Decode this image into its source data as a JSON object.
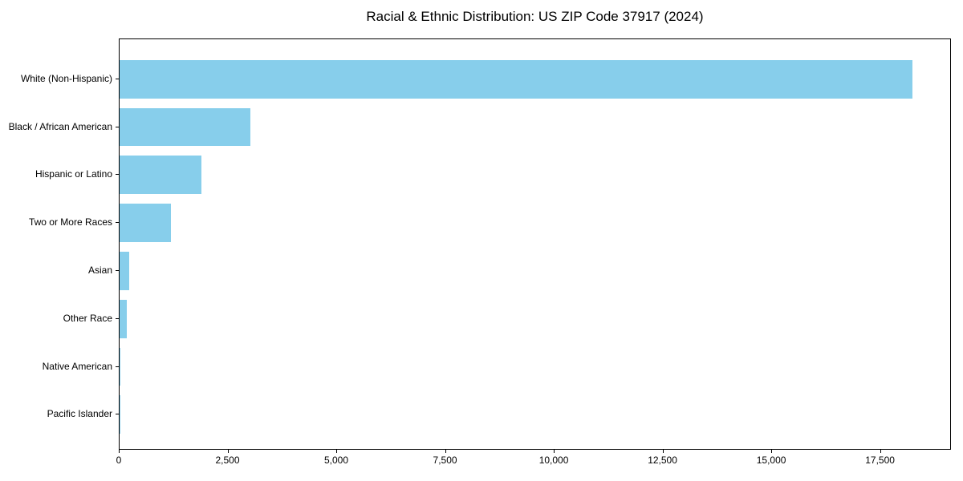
{
  "chart_data": {
    "type": "bar",
    "orientation": "horizontal",
    "title": "Racial & Ethnic Distribution: US ZIP Code 37917 (2024)",
    "categories": [
      "White (Non-Hispanic)",
      "Black / African American",
      "Hispanic or Latino",
      "Two or More Races",
      "Asian",
      "Other Race",
      "Native American",
      "Pacific Islander"
    ],
    "values": [
      18220,
      3000,
      1880,
      1180,
      220,
      160,
      25,
      8
    ],
    "xlabel": "",
    "ylabel": "",
    "xlim": [
      0,
      19131
    ],
    "xticks": {
      "values": [
        0,
        2500,
        5000,
        7500,
        10000,
        12500,
        15000,
        17500
      ],
      "labels": [
        "0",
        "2,500",
        "5,000",
        "7,500",
        "10,000",
        "12,500",
        "15,000",
        "17,500"
      ]
    },
    "grid": false,
    "legend_position": "none",
    "bar_color": "#87CEEB",
    "frame_color": "#000000",
    "text_color": "#000000",
    "background_color": "#ffffff"
  }
}
